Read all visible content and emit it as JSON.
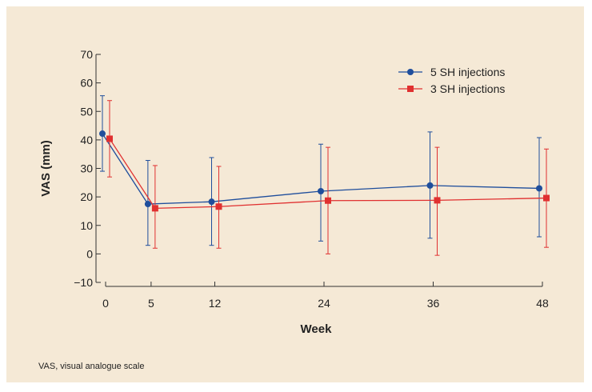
{
  "chart_data": {
    "type": "line",
    "xlabel": "Week",
    "ylabel": "VAS (mm)",
    "x": [
      0,
      5,
      12,
      24,
      36,
      48
    ],
    "x_tick_labels": [
      "0",
      "5",
      "12",
      "24",
      "36",
      "48"
    ],
    "y_tick_labels": [
      "−10",
      "0",
      "10",
      "20",
      "30",
      "40",
      "50",
      "60",
      "70"
    ],
    "ylim": [
      -10,
      70
    ],
    "legend_position": "top-right",
    "grid": false,
    "series": [
      {
        "name": "5 SH injections",
        "color": "#1f4e9c",
        "marker": "circle",
        "values": [
          42.2,
          17.5,
          18.3,
          22,
          24,
          23
        ],
        "error_low": [
          29,
          3,
          3,
          4.5,
          5.5,
          6
        ],
        "error_high": [
          55.5,
          32.8,
          33.8,
          38.5,
          42.8,
          40.8
        ]
      },
      {
        "name": "3 SH injections",
        "color": "#e03030",
        "marker": "square",
        "values": [
          40.4,
          16,
          16.6,
          18.7,
          18.8,
          19.6
        ],
        "error_low": [
          27,
          2,
          2,
          0,
          -0.5,
          2.3
        ],
        "error_high": [
          53.8,
          31,
          30.7,
          37.4,
          37.4,
          36.8
        ]
      }
    ]
  },
  "footnote": "VAS, visual analogue scale"
}
